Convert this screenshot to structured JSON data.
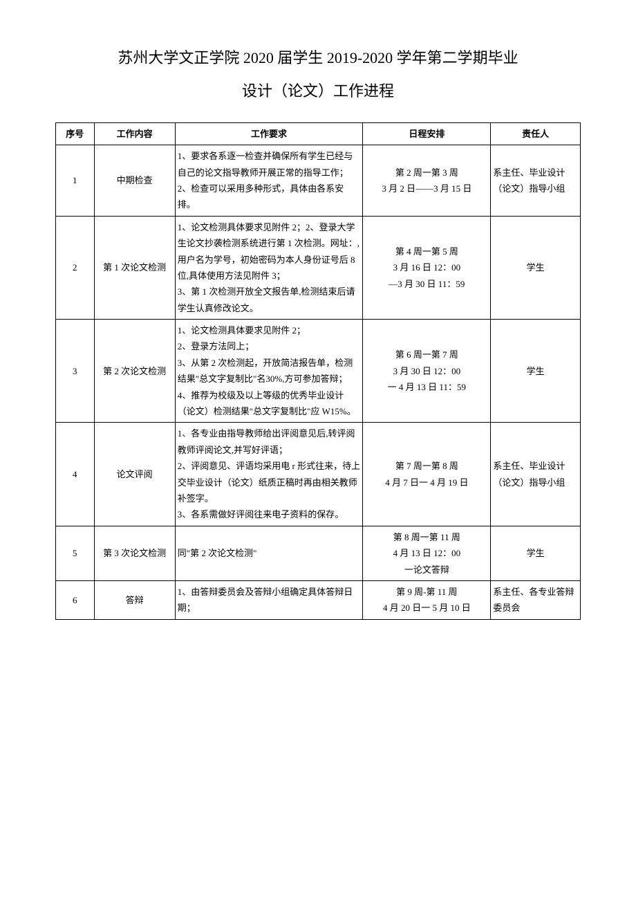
{
  "title_line1": "苏州大学文正学院 2020 届学生 2019-2020 学年第二学期毕业",
  "title_line2": "设计（论文）工作进程",
  "headers": {
    "idx": "序号",
    "work": "工作内容",
    "req": "工作要求",
    "date": "日程安排",
    "person": "责任人"
  },
  "rows": [
    {
      "idx": "1",
      "work": "中期检查",
      "req": "1、要求各系逐一检查并确保所有学生已经与自己的论文指导教师开展正常的指导工作；\n2、检查可以采用多种形式，具体由各系安排。",
      "date": "第 2 周一第 3 周\n3 月 2 日——3 月 15 日",
      "person": "系主任、毕业设计（论文）指导小组"
    },
    {
      "idx": "2",
      "work": "第 1 次论文检测",
      "req": "1、论文检测具体要求见附件 2；2、登录大学生论文抄袭检测系统进行第 1 次检测。网址：,用户名为学号，初始密码为本人身份证号后 8 位,具体使用方法见附件 3；\n3、第 1 次检测开放全文报告单,检测结束后请学生认真修改论文。",
      "date": "第 4 周一第 5 周\n3 月 16 日 12：00\n—3 月 30 日 11：59",
      "person": "学生"
    },
    {
      "idx": "3",
      "work": "第 2 次论文检测",
      "req": "1、论文检测具体要求见附件 2；\n2、登录方法同上；\n3、从第 2 次检测起，开放简洁报告单，检测结果\"总文字复制比\"名30%,方可参加答辩；\n4、推荐为校级及以上等级的优秀毕业设计（论文）检测结果\"总文字复制比\"应 W15%。",
      "date": "第 6 周一第 7 周\n3 月 30 日 12：00\n一 4 月 13 日 11：59",
      "person": "学生"
    },
    {
      "idx": "4",
      "work": "论文评阅",
      "req": "1、各专业由指导教师给出评阅意见后,转评阅教师评阅论文,并写好评语；\n2、评阅意见、评语均采用电 r 形式往来，待上交毕业设计（论文）纸质正稿时再由相关教师补签字。\n3、各系需做好评阅往来电子资料的保存。",
      "date": "第 7 周一第 8 周\n4 月 7 日一 4 月 19 日",
      "person": "系主任、毕业设计（论文）指导小组"
    },
    {
      "idx": "5",
      "work": "第 3 次论文检测",
      "req": "同\"第 2 次论文检测\"",
      "date": "第 8 周一第 11 周\n4 月 13 日 12：00\n一论文答辩",
      "person": "学生"
    },
    {
      "idx": "6",
      "work": "答辩",
      "req": "1、由答辩委员会及答辩小组确定具体答辩日期；",
      "date": "第 9 周-第 11 周\n4 月 20 日一 5 月 10 日",
      "person": "系主任、各专业答辩委员会"
    }
  ]
}
